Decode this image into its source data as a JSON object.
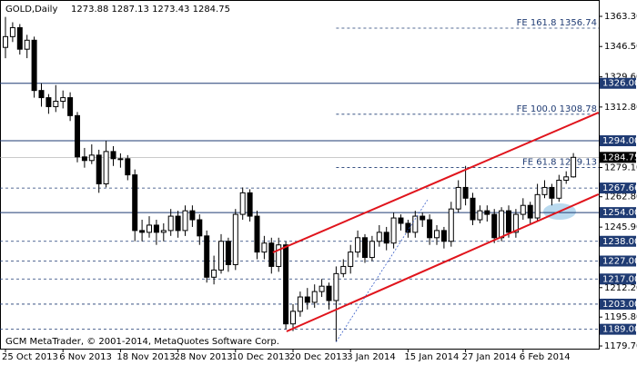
{
  "chart_data": {
    "type": "candlestick",
    "title": "GOLD,Daily",
    "ohlc_text": "1273.88 1287.13 1273.43 1284.75",
    "footer": "GCM MetaTrader, © 2001-2014, MetaQuotes Software Corp.",
    "categories": [
      "25 Oct 2013",
      null,
      null,
      null,
      null,
      null,
      null,
      null,
      "6 Nov 2013",
      null,
      null,
      null,
      null,
      null,
      null,
      null,
      "18 Nov 2013",
      null,
      null,
      null,
      null,
      null,
      null,
      null,
      "28 Nov 2013",
      null,
      null,
      null,
      null,
      null,
      null,
      null,
      "10 Dec 2013",
      null,
      null,
      null,
      null,
      null,
      null,
      null,
      "20 Dec 2013",
      null,
      null,
      null,
      null,
      null,
      null,
      null,
      "3 Jan 2014",
      null,
      null,
      null,
      null,
      null,
      null,
      null,
      "15 Jan 2014",
      null,
      null,
      null,
      null,
      null,
      null,
      null,
      "27 Jan 2014",
      null,
      null,
      null,
      null,
      null,
      null,
      null,
      "6 Feb 2014",
      null,
      null,
      null,
      null,
      null,
      null,
      null
    ],
    "open": [
      1346,
      1352,
      1357,
      1345,
      1350,
      1322,
      1318,
      1313,
      1316,
      1318,
      1308,
      1285,
      1283,
      1286,
      1270,
      1288,
      1284,
      1284,
      1275,
      1244,
      1243,
      1247,
      1243,
      1244,
      1252,
      1244,
      1255,
      1250,
      1241,
      1218,
      1222,
      1238,
      1225,
      1253,
      1265,
      1252,
      1232,
      1237,
      1224,
      1236,
      1192,
      1199,
      1207,
      1204,
      1210,
      1213,
      1205,
      1220,
      1224,
      1232,
      1240,
      1229,
      1238,
      1243,
      1237,
      1251,
      1248,
      1243,
      1252,
      1250,
      1240,
      1244,
      1238,
      1256,
      1268,
      1262,
      1250,
      1255,
      1253,
      1240,
      1255,
      1243,
      1253,
      1258,
      1251,
      1264,
      1268,
      1262,
      1272,
      1273.88
    ],
    "high": [
      1363,
      1360,
      1359,
      1353,
      1352,
      1326,
      1320,
      1325,
      1322,
      1321,
      1310,
      1290,
      1292,
      1289,
      1294,
      1291,
      1287,
      1286,
      1278,
      1250,
      1252,
      1250,
      1248,
      1256,
      1255,
      1258,
      1258,
      1253,
      1244,
      1230,
      1242,
      1240,
      1256,
      1268,
      1267,
      1255,
      1241,
      1240,
      1240,
      1238,
      1203,
      1210,
      1212,
      1214,
      1217,
      1215,
      1224,
      1228,
      1236,
      1244,
      1242,
      1241,
      1247,
      1246,
      1254,
      1253,
      1250,
      1255,
      1254,
      1253,
      1247,
      1246,
      1260,
      1272,
      1280,
      1265,
      1258,
      1258,
      1256,
      1257,
      1258,
      1256,
      1262,
      1260,
      1270,
      1272,
      1270,
      1275,
      1277,
      1287.13
    ],
    "low": [
      1340,
      1349,
      1342,
      1340,
      1318,
      1313,
      1309,
      1310,
      1312,
      1305,
      1282,
      1279,
      1281,
      1265,
      1268,
      1280,
      1279,
      1272,
      1238,
      1238,
      1240,
      1236,
      1238,
      1241,
      1240,
      1241,
      1246,
      1236,
      1215,
      1214,
      1220,
      1221,
      1222,
      1250,
      1249,
      1228,
      1228,
      1220,
      1221,
      1189,
      1188,
      1196,
      1200,
      1201,
      1207,
      1200,
      1182,
      1218,
      1220,
      1229,
      1226,
      1227,
      1235,
      1233,
      1234,
      1244,
      1240,
      1240,
      1246,
      1236,
      1236,
      1234,
      1235,
      1254,
      1258,
      1247,
      1248,
      1249,
      1237,
      1238,
      1240,
      1240,
      1250,
      1248,
      1249,
      1262,
      1258,
      1260,
      1270,
      1273.43
    ],
    "close": [
      1352,
      1357,
      1345,
      1350,
      1322,
      1318,
      1313,
      1316,
      1318,
      1308,
      1285,
      1283,
      1286,
      1270,
      1288,
      1284,
      1284,
      1275,
      1244,
      1243,
      1247,
      1243,
      1244,
      1252,
      1244,
      1255,
      1250,
      1241,
      1218,
      1222,
      1238,
      1225,
      1253,
      1265,
      1252,
      1232,
      1237,
      1224,
      1236,
      1192,
      1199,
      1207,
      1204,
      1210,
      1213,
      1205,
      1220,
      1224,
      1232,
      1240,
      1229,
      1238,
      1243,
      1237,
      1251,
      1248,
      1243,
      1252,
      1250,
      1240,
      1244,
      1238,
      1256,
      1268,
      1262,
      1250,
      1255,
      1253,
      1240,
      1255,
      1243,
      1253,
      1258,
      1251,
      1264,
      1268,
      1262,
      1272,
      1273.88,
      1284.75
    ],
    "ylim": [
      1178.2,
      1372.4
    ],
    "yticks": [
      {
        "value": 1363.3,
        "label": "1363.30"
      },
      {
        "value": 1346.5,
        "label": "1346.50"
      },
      {
        "value": 1329.6,
        "label": "1329.60"
      },
      {
        "value": 1312.8,
        "label": "1312.80"
      },
      {
        "value": 1279.1,
        "label": "1279.10"
      },
      {
        "value": 1262.8,
        "label": "1262.80"
      },
      {
        "value": 1245.9,
        "label": "1245.90"
      },
      {
        "value": 1212.2,
        "label": "1212.20"
      },
      {
        "value": 1195.8,
        "label": "1195.80"
      },
      {
        "value": 1179.7,
        "label": "1179.70"
      }
    ],
    "levels": [
      {
        "value": 1326,
        "label": "1326.00",
        "style": "solid"
      },
      {
        "value": 1294,
        "label": "1294.00",
        "style": "solid"
      },
      {
        "value": 1267.66,
        "label": "1267.66",
        "style": "dashed"
      },
      {
        "value": 1254,
        "label": "1254.00",
        "style": "solid"
      },
      {
        "value": 1238,
        "label": "1238.00",
        "style": "dashed"
      },
      {
        "value": 1227,
        "label": "1227.00",
        "style": "dashed"
      },
      {
        "value": 1217,
        "label": "1217.00",
        "style": "dashed"
      },
      {
        "value": 1203,
        "label": "1203.00",
        "style": "dashed"
      },
      {
        "value": 1189,
        "label": "1189.00",
        "style": "dashed"
      }
    ],
    "fib": [
      {
        "value": 1356.74,
        "label": "FE 161.8 1356.74"
      },
      {
        "value": 1308.78,
        "label": "FE 100.0 1308.78"
      },
      {
        "value": 1279.13,
        "label": "FE 61.8 1279.13"
      }
    ],
    "fib_start": 46,
    "current_price": {
      "value": 1284.75,
      "label": "1284.75"
    },
    "channel": [
      {
        "x": [
          37.2,
          82.5
        ],
        "y": [
          1231.8,
          1309.7
        ]
      },
      {
        "x": [
          39.1,
          82.5
        ],
        "y": [
          1187.8,
          1264.2
        ]
      }
    ],
    "projection": {
      "x": [
        46,
        58.7
      ],
      "y": [
        1182,
        1261
      ]
    },
    "up_color": "#ffffff",
    "down_color": "#000000",
    "level_color": "#1f3b73",
    "channel_color": "#e0141c",
    "projection_color": "#3a5fc8"
  }
}
